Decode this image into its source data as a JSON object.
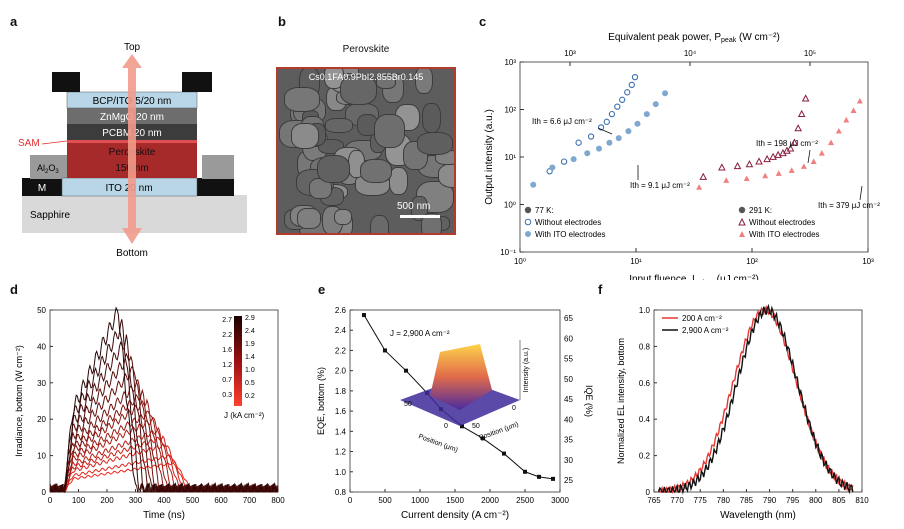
{
  "panels": {
    "a": "a",
    "b": "b",
    "c": "c",
    "d": "d",
    "e": "e",
    "f": "f"
  },
  "panel_a": {
    "top_label": "Top",
    "bottom_label": "Bottom",
    "layers": [
      {
        "text": "BCP/ITO 5/20 nm",
        "color": "#b9d6e8"
      },
      {
        "text": "ZnMgO 20 nm",
        "color": "#6d6d6d"
      },
      {
        "text": "PCBM 20 nm",
        "color": "#3c3c3c"
      },
      {
        "text": "Perovskite",
        "color": "#a72a2a"
      },
      {
        "text": "150 nm",
        "color": "#a72a2a"
      },
      {
        "text": "ITO 20 nm",
        "color": "#b9d6e8"
      }
    ],
    "sam": "SAM",
    "al2o3": "Al",
    "al2o3_sub": "2",
    "al2o3_o": "O",
    "al2o3_sub2": "3",
    "m": "M",
    "sapphire": "Sapphire"
  },
  "panel_b": {
    "title": "Perovskite",
    "formula": "Cs0.1FA0.9PbI2.855Br0.145",
    "scale": "500 nm"
  },
  "panel_c": {
    "top_axis_label": "Equivalent peak power, P",
    "top_axis_sub": "peak",
    "top_axis_unit": " (W cm⁻²)",
    "top_ticks": [
      "10³",
      "10⁴",
      "10⁵"
    ],
    "y_label": "Output intensity (a.u.)",
    "x_label": "Input fluence, I",
    "x_sub": "opt,ns",
    "x_unit": " (μJ cm⁻²)",
    "y_ticks": [
      "10⁻¹",
      "10⁰",
      "10¹",
      "10²",
      "10³"
    ],
    "x_ticks": [
      "10⁰",
      "10¹",
      "10²",
      "10³"
    ],
    "legend_left": {
      "header": "77 K:",
      "s1": "Without electrodes",
      "s2": "With ITO electrodes"
    },
    "legend_right": {
      "header": "291 K:",
      "s1": "Without electrodes",
      "s2": "With ITO electrodes"
    },
    "annot": [
      "Ith = 6.6 μJ cm⁻²",
      "Ith = 9.1 μJ cm⁻²",
      "Ith = 198 μJ cm⁻²",
      "Ith = 379 μJ cm⁻²"
    ]
  },
  "chart_data": [
    {
      "type": "scatter",
      "panel": "c",
      "xscale": "log",
      "yscale": "log",
      "xlim": [
        1,
        1000
      ],
      "ylim": [
        0.1,
        1000
      ],
      "series": [
        {
          "name": "77 K Without electrodes",
          "x": [
            1.8,
            2.4,
            3.2,
            4.1,
            5.0,
            5.6,
            6.2,
            6.9,
            7.6,
            8.4,
            9.2,
            9.8
          ],
          "y": [
            5,
            8,
            20,
            27,
            42,
            55,
            80,
            115,
            160,
            230,
            330,
            480
          ]
        },
        {
          "name": "77 K With ITO electrodes",
          "x": [
            1.3,
            1.9,
            2.9,
            3.8,
            4.8,
            5.9,
            7.1,
            8.6,
            10.3,
            12.4,
            14.8,
            17.8
          ],
          "y": [
            2.6,
            6,
            9,
            12,
            15,
            20,
            25,
            35,
            50,
            80,
            130,
            220
          ]
        },
        {
          "name": "291 K Without electrodes",
          "x": [
            38,
            55,
            75,
            95,
            115,
            135,
            152,
            168,
            185,
            200,
            215,
            232,
            250,
            268,
            290
          ],
          "y": [
            3.8,
            6,
            6.4,
            7.0,
            8,
            9,
            10,
            11,
            12,
            13.5,
            15,
            20,
            40,
            80,
            170
          ]
        },
        {
          "name": "291 K With ITO electrodes",
          "x": [
            35,
            60,
            90,
            130,
            170,
            220,
            280,
            340,
            400,
            480,
            560,
            650,
            750,
            850
          ],
          "y": [
            2.3,
            3.2,
            3.5,
            4,
            4.5,
            5.2,
            6.3,
            8,
            12,
            20,
            35,
            60,
            95,
            150
          ]
        }
      ]
    },
    {
      "type": "line",
      "panel": "d",
      "xlabel": "Time (ns)",
      "ylabel": "Irradiance, bottom (W cm⁻²)",
      "xlim": [
        0,
        800
      ],
      "ylim": [
        0,
        50
      ],
      "x_ticks": [
        0,
        100,
        200,
        300,
        400,
        500,
        600,
        700,
        800
      ],
      "y_ticks": [
        0,
        10,
        20,
        30,
        40,
        50
      ],
      "colorbar": {
        "label": "J (kA cm⁻²)",
        "ticks_left": [
          "2.7",
          "2.2",
          "1.6",
          "1.2",
          "0.7",
          "0.3"
        ],
        "ticks_right": [
          "2.9",
          "2.4",
          "1.9",
          "1.4",
          "1.0",
          "0.5",
          "0.2"
        ]
      },
      "peaks": [
        8,
        10,
        13,
        15,
        17,
        20,
        22,
        25,
        27,
        30,
        34,
        38,
        42,
        46,
        50
      ]
    },
    {
      "type": "line",
      "panel": "e",
      "xlabel": "Current density (A cm⁻²)",
      "ylabel": "EQE, bottom (%)",
      "ylabel_right": "IQE (%)",
      "xlim": [
        0,
        3000
      ],
      "ylim": [
        0.8,
        2.6
      ],
      "x": [
        200,
        500,
        800,
        1100,
        1300,
        1600,
        1900,
        2200,
        2500,
        2700,
        2900
      ],
      "y": [
        2.55,
        2.2,
        2.0,
        1.78,
        1.62,
        1.45,
        1.33,
        1.18,
        1.0,
        0.95,
        0.93
      ],
      "x_ticks": [
        0,
        500,
        1000,
        1500,
        2000,
        2500,
        3000
      ],
      "y_ticks": [
        "0.8",
        "1.0",
        "1.2",
        "1.4",
        "1.6",
        "1.8",
        "2.0",
        "2.2",
        "2.4",
        "2.6"
      ],
      "y_ticks_right": [
        "25",
        "30",
        "35",
        "40",
        "45",
        "50",
        "55",
        "60",
        "65"
      ],
      "inset": {
        "label": "J = 2,900 A cm⁻²",
        "x_label": "Position (μm)",
        "y_label": "Position (μm)",
        "z_label": "Intensity (a.u.)",
        "ticks": [
          "50",
          "0",
          "50",
          "0"
        ]
      }
    },
    {
      "type": "line",
      "panel": "f",
      "xlabel": "Wavelength (nm)",
      "ylabel": "Normalized EL intensity, bottom",
      "xlim": [
        765,
        810
      ],
      "ylim": [
        0,
        1.0
      ],
      "x_ticks": [
        "765",
        "770",
        "775",
        "780",
        "785",
        "790",
        "795",
        "800",
        "805",
        "810"
      ],
      "y_ticks": [
        "0",
        "0.2",
        "0.4",
        "0.6",
        "0.8",
        "1.0"
      ],
      "series": [
        {
          "name": "200 A cm⁻²",
          "color": "#e53935",
          "center": 789,
          "sigma": 6.8
        },
        {
          "name": "2,900 A cm⁻²",
          "color": "#111111",
          "center": 789.5,
          "sigma": 6.5
        }
      ]
    }
  ]
}
